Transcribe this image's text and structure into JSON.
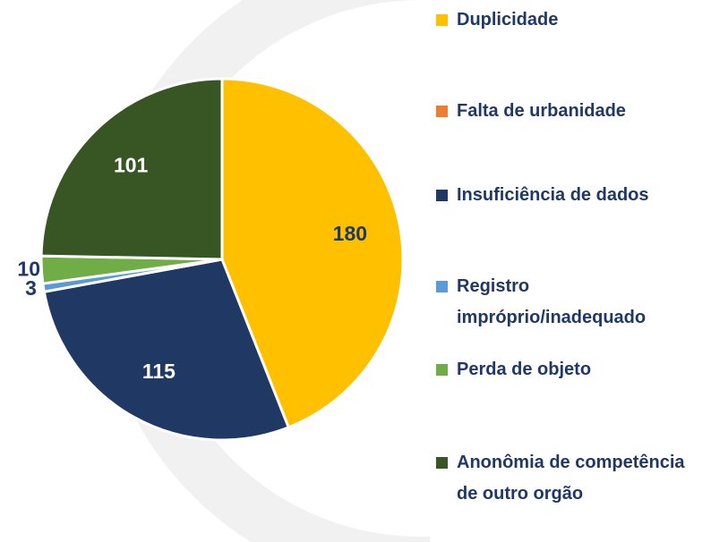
{
  "chart_data": {
    "type": "pie",
    "categories": [
      "Duplicidade",
      "Falta de urbanidade",
      "Insuficiência de dados",
      "Registro impróprio/inadequado",
      "Perda de objeto",
      "Anonômia de competência de outro orgão"
    ],
    "values": [
      180,
      0,
      115,
      3,
      10,
      101
    ],
    "colors": [
      "#ffc000",
      "#ed7d31",
      "#203864",
      "#5b9bd5",
      "#70ad47",
      "#375623"
    ]
  }
}
